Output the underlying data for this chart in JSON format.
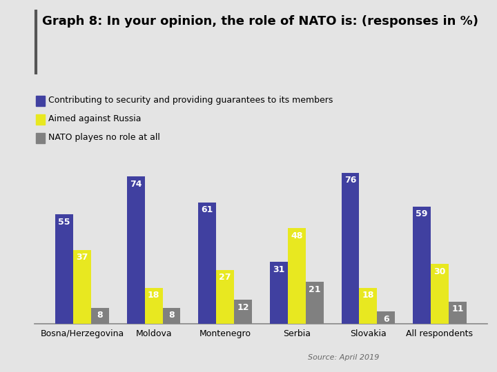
{
  "title": "Graph 8: In your opinion, the role of NATO is: (responses in %)",
  "categories": [
    "Bosna/Herzegovina",
    "Moldova",
    "Montenegro",
    "Serbia",
    "Slovakia",
    "All respondents"
  ],
  "series": {
    "contributing": [
      55,
      74,
      61,
      31,
      76,
      59
    ],
    "aimed": [
      37,
      18,
      27,
      48,
      18,
      30
    ],
    "no_role": [
      8,
      8,
      12,
      21,
      6,
      11
    ]
  },
  "colors": {
    "contributing": "#4040a0",
    "aimed": "#e8e820",
    "no_role": "#808080"
  },
  "legend_labels": [
    "Contributing to security and providing guarantees to its members",
    "Aimed against Russia",
    "NATO playes no role at all"
  ],
  "source": "Source: April 2019",
  "background_color": "#e4e4e4",
  "bar_width": 0.25,
  "title_fontsize": 13,
  "label_fontsize": 9,
  "tick_fontsize": 9,
  "legend_fontsize": 9,
  "source_fontsize": 8,
  "accent_line_color": "#555555"
}
